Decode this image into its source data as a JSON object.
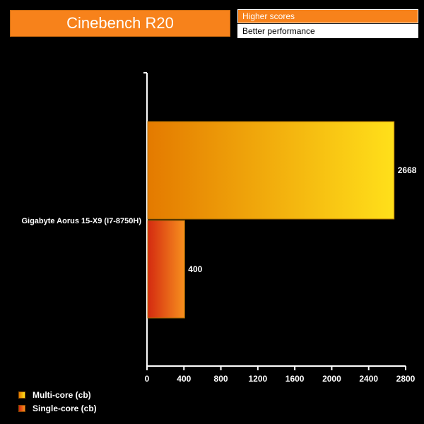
{
  "header": {
    "title": "Cinebench R20",
    "note_line1": "Higher scores",
    "note_line2": "Better performance"
  },
  "chart_data": {
    "type": "bar",
    "orientation": "horizontal",
    "title": "Cinebench R20",
    "categories": [
      "Gigabyte Aorus 15-X9 (I7-8750H)"
    ],
    "series": [
      {
        "name": "Multi-core (cb)",
        "values": [
          2668
        ],
        "color_from": "#e47a00",
        "color_to": "#ffe01a"
      },
      {
        "name": "Single-core (cb)",
        "values": [
          400
        ],
        "color_from": "#d42a10",
        "color_to": "#f7901e"
      }
    ],
    "xlim": [
      0,
      2800
    ],
    "xticks": [
      0,
      400,
      800,
      1200,
      1600,
      2000,
      2400,
      2800
    ],
    "grid": false,
    "legend_position": "bottom-left"
  }
}
